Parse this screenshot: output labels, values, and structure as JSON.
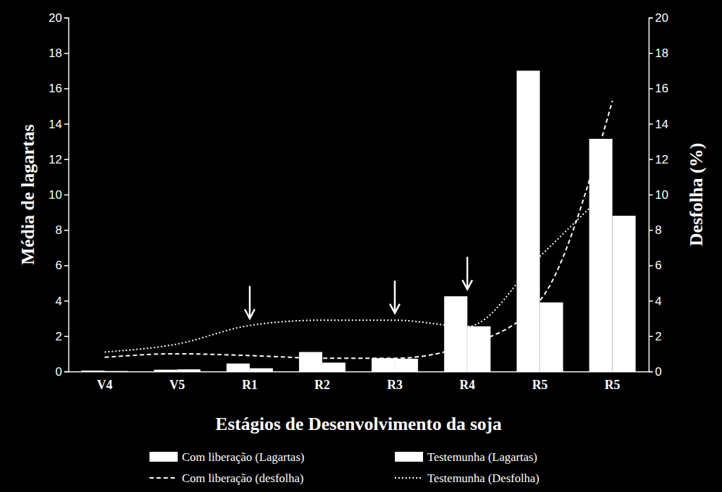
{
  "chart_data": {
    "type": "bar",
    "x_label": "Estágios de Desenvolvimento da soja",
    "y_label": "Média de lagartas",
    "y2_label": "Desfolha (%)",
    "categories": [
      "V4",
      "V5",
      "R1",
      "R2",
      "R3",
      "R4",
      "R5",
      "R5"
    ],
    "ylim": [
      0,
      20
    ],
    "yticks": [
      0,
      2,
      4,
      6,
      8,
      10,
      12,
      14,
      16,
      18,
      20
    ],
    "y2lim": [
      0,
      20
    ],
    "y2ticks": [
      0,
      2,
      4,
      6,
      8,
      10,
      12,
      14,
      16,
      18,
      20
    ],
    "legend": "bottom",
    "arrows": [
      2,
      4,
      5
    ],
    "series": [
      {
        "name": "Com liberação (Lagartas)",
        "type": "bar",
        "color": "#ffffff",
        "values": [
          0.05,
          0.1,
          0.45,
          1.1,
          0.75,
          4.25,
          17.0,
          13.15
        ]
      },
      {
        "name": "Testemunha (Lagartas)",
        "type": "bar",
        "color": "#ffffff",
        "values": [
          0.02,
          0.12,
          0.18,
          0.5,
          0.72,
          2.55,
          3.9,
          8.8
        ]
      },
      {
        "name": "Com liberação (desfolha)",
        "type": "line",
        "axis": "y2",
        "color": "#ffffff",
        "line_style": "dashed",
        "values": [
          0.8,
          1.0,
          0.9,
          0.75,
          0.75,
          1.5,
          4.0,
          15.3
        ]
      },
      {
        "name": "Testemunha (Desfolha)",
        "type": "line",
        "axis": "y2",
        "color": "#ffffff",
        "line_style": "dotted",
        "values": [
          1.1,
          1.55,
          2.6,
          2.9,
          2.9,
          2.55,
          6.5,
          10.5
        ]
      }
    ]
  }
}
